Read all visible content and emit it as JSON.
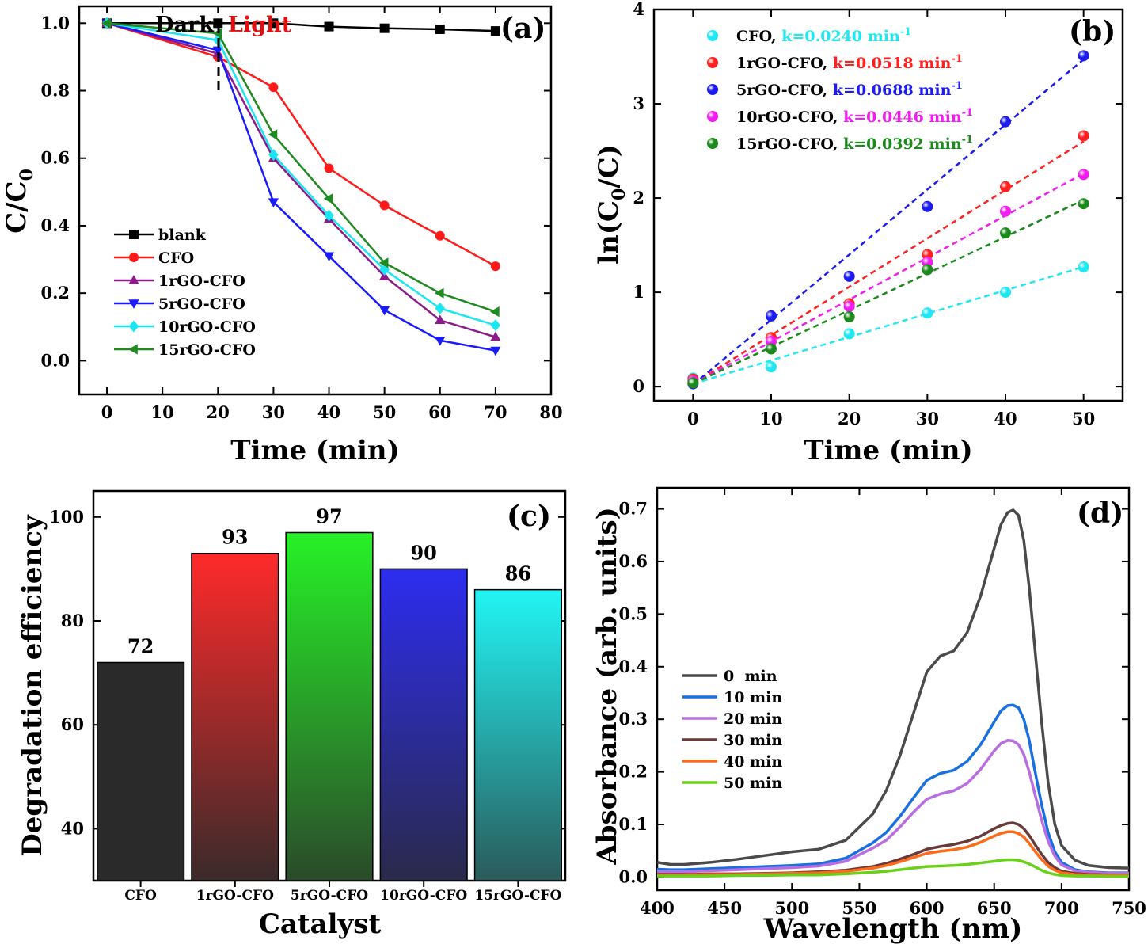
{
  "chart_data": [
    {
      "type": "line",
      "panel": "(a)",
      "xlabel": "Time (min)",
      "ylabel": "C/C",
      "ylabel_sub": "0",
      "xlim": [
        -5,
        80
      ],
      "ylim": [
        -0.1,
        1.05
      ],
      "xticks": [
        0,
        10,
        20,
        30,
        40,
        50,
        60,
        70,
        80
      ],
      "yticks": [
        0.0,
        0.2,
        0.4,
        0.6,
        0.8,
        1.0
      ],
      "ytick_labels": [
        "0.0",
        "0.2",
        "0.4",
        "0.6",
        "0.8",
        "1.0"
      ],
      "annotations": {
        "dark": "Dark",
        "light": "Light",
        "divider_x": 20
      },
      "x": [
        0,
        20,
        30,
        40,
        50,
        60,
        70
      ],
      "series": [
        {
          "name": "blank",
          "color": "#000000",
          "marker": "square",
          "values": [
            1.0,
            1.0,
            1.0,
            0.99,
            0.985,
            0.982,
            0.977
          ]
        },
        {
          "name": "CFO",
          "color": "#ff1a1a",
          "marker": "circle",
          "values": [
            1.0,
            0.9,
            0.81,
            0.57,
            0.46,
            0.37,
            0.28
          ]
        },
        {
          "name": "1rGO-CFO",
          "color": "#8b1a8b",
          "marker": "triangle-up",
          "values": [
            1.0,
            0.91,
            0.6,
            0.42,
            0.25,
            0.12,
            0.07
          ]
        },
        {
          "name": "5rGO-CFO",
          "color": "#1a1aff",
          "marker": "triangle-down",
          "values": [
            1.0,
            0.92,
            0.47,
            0.31,
            0.15,
            0.06,
            0.03
          ]
        },
        {
          "name": "10rGO-CFO",
          "color": "#19e6f0",
          "marker": "diamond",
          "values": [
            1.0,
            0.95,
            0.61,
            0.43,
            0.27,
            0.155,
            0.105
          ]
        },
        {
          "name": "15rGO-CFO",
          "color": "#1f8a1f",
          "marker": "triangle-left",
          "values": [
            1.0,
            0.97,
            0.67,
            0.48,
            0.29,
            0.2,
            0.145
          ]
        }
      ]
    },
    {
      "type": "scatter",
      "panel": "(b)",
      "xlabel": "Time (min)",
      "ylabel": "ln(C",
      "ylabel_sub": "0",
      "ylabel_tail": "/C)",
      "xlim": [
        -5,
        55
      ],
      "ylim": [
        -0.15,
        4
      ],
      "xticks": [
        0,
        10,
        20,
        30,
        40,
        50
      ],
      "yticks": [
        0,
        1,
        2,
        3,
        4
      ],
      "x": [
        0,
        10,
        20,
        30,
        40,
        50
      ],
      "series": [
        {
          "name": "CFO,",
          "k": "k=0.0240 min",
          "k_sup": "-1",
          "color": "#1ee8f2",
          "values": [
            0.09,
            0.21,
            0.56,
            0.78,
            1.0,
            1.27
          ],
          "fit": [
            0.03,
            1.27
          ]
        },
        {
          "name": "1rGO-CFO,",
          "k": "k=0.0518 min",
          "k_sup": "-1",
          "color": "#ff2020",
          "values": [
            0.08,
            0.52,
            0.88,
            1.4,
            2.12,
            2.66
          ],
          "fit": [
            0.03,
            2.6
          ]
        },
        {
          "name": "5rGO-CFO,",
          "k": "k=0.0688 min",
          "k_sup": "-1",
          "color": "#1c1cf0",
          "values": [
            0.03,
            0.75,
            1.17,
            1.91,
            2.81,
            3.51
          ],
          "fit": [
            0.02,
            3.47
          ]
        },
        {
          "name": "10rGO-CFO,",
          "k": "k=0.0446 min",
          "k_sup": "-1",
          "color": "#f01cf0",
          "values": [
            0.06,
            0.48,
            0.85,
            1.32,
            1.86,
            2.25
          ],
          "fit": [
            0.03,
            2.26
          ]
        },
        {
          "name": "15rGO-CFO,",
          "k": "k=0.0392 min",
          "k_sup": "-1",
          "color": "#1a8a1a",
          "values": [
            0.04,
            0.4,
            0.74,
            1.24,
            1.63,
            1.94
          ],
          "fit": [
            0.03,
            1.98
          ]
        }
      ]
    },
    {
      "type": "bar",
      "panel": "(c)",
      "xlabel": "Catalyst",
      "ylabel": "Degradation efficiency",
      "ylim": [
        30,
        105
      ],
      "yticks": [
        40,
        60,
        80,
        100
      ],
      "categories": [
        "CFO",
        "1rGO-CFO",
        "5rGO-CFO",
        "10rGO-CFO",
        "15rGO-CFO"
      ],
      "values": [
        72,
        93,
        97,
        90,
        86
      ],
      "value_labels": [
        "72",
        "93",
        "97",
        "90",
        "86"
      ],
      "colors_top": [
        "#2a2a2a",
        "#ff2a2a",
        "#27f227",
        "#2d2df0",
        "#22f5f5"
      ],
      "colors_bottom": [
        "#2a2a2a",
        "#3a2a2a",
        "#2a4a2a",
        "#2a2a4a",
        "#2a5a5a"
      ]
    },
    {
      "type": "line",
      "panel": "(d)",
      "xlabel": "Wavelength (nm)",
      "ylabel": "Absorbance (arb. units)",
      "xlim": [
        400,
        750
      ],
      "ylim": [
        -0.025,
        0.74
      ],
      "xticks": [
        400,
        450,
        500,
        550,
        600,
        650,
        700,
        750
      ],
      "yticks": [
        0.0,
        0.1,
        0.2,
        0.3,
        0.4,
        0.5,
        0.6,
        0.7
      ],
      "ytick_labels": [
        "0.0",
        "0.1",
        "0.2",
        "0.3",
        "0.4",
        "0.5",
        "0.6",
        "0.7"
      ],
      "x": [
        400,
        410,
        420,
        440,
        460,
        480,
        500,
        520,
        540,
        560,
        570,
        580,
        590,
        600,
        610,
        620,
        630,
        640,
        650,
        655,
        660,
        664,
        668,
        672,
        676,
        680,
        685,
        690,
        695,
        700,
        710,
        720,
        735,
        750
      ],
      "series": [
        {
          "name": "0  min",
          "color": "#4a4a4a",
          "values": [
            0.028,
            0.024,
            0.024,
            0.028,
            0.034,
            0.041,
            0.048,
            0.053,
            0.07,
            0.12,
            0.165,
            0.23,
            0.31,
            0.39,
            0.42,
            0.43,
            0.465,
            0.535,
            0.625,
            0.67,
            0.693,
            0.698,
            0.688,
            0.64,
            0.55,
            0.44,
            0.3,
            0.18,
            0.1,
            0.06,
            0.032,
            0.022,
            0.018,
            0.017
          ]
        },
        {
          "name": "10 min",
          "color": "#1a6fe0",
          "values": [
            0.015,
            0.014,
            0.014,
            0.016,
            0.018,
            0.02,
            0.022,
            0.025,
            0.036,
            0.065,
            0.085,
            0.115,
            0.15,
            0.184,
            0.197,
            0.203,
            0.22,
            0.252,
            0.295,
            0.316,
            0.326,
            0.327,
            0.322,
            0.3,
            0.26,
            0.205,
            0.14,
            0.085,
            0.048,
            0.028,
            0.014,
            0.01,
            0.008,
            0.008
          ]
        },
        {
          "name": "20 min",
          "color": "#b86ee0",
          "values": [
            0.01,
            0.01,
            0.01,
            0.012,
            0.014,
            0.016,
            0.018,
            0.021,
            0.03,
            0.055,
            0.07,
            0.095,
            0.123,
            0.148,
            0.158,
            0.164,
            0.178,
            0.205,
            0.24,
            0.254,
            0.26,
            0.259,
            0.252,
            0.233,
            0.2,
            0.16,
            0.11,
            0.068,
            0.04,
            0.023,
            0.012,
            0.009,
            0.007,
            0.007
          ]
        },
        {
          "name": "30 min",
          "color": "#6a3a3a",
          "values": [
            0.005,
            0.005,
            0.005,
            0.006,
            0.006,
            0.007,
            0.008,
            0.01,
            0.013,
            0.02,
            0.026,
            0.034,
            0.043,
            0.053,
            0.058,
            0.062,
            0.068,
            0.078,
            0.092,
            0.098,
            0.102,
            0.103,
            0.1,
            0.092,
            0.079,
            0.063,
            0.044,
            0.028,
            0.018,
            0.011,
            0.007,
            0.005,
            0.004,
            0.004
          ]
        },
        {
          "name": "40 min",
          "color": "#ff6a1a",
          "values": [
            0.004,
            0.004,
            0.004,
            0.005,
            0.005,
            0.006,
            0.007,
            0.008,
            0.011,
            0.017,
            0.022,
            0.029,
            0.037,
            0.045,
            0.049,
            0.052,
            0.057,
            0.066,
            0.078,
            0.083,
            0.086,
            0.086,
            0.083,
            0.076,
            0.064,
            0.05,
            0.034,
            0.021,
            0.013,
            0.008,
            0.005,
            0.004,
            0.003,
            0.003
          ]
        },
        {
          "name": "50 min",
          "color": "#6ad11a",
          "values": [
            0.002,
            0.002,
            0.002,
            0.002,
            0.003,
            0.003,
            0.004,
            0.004,
            0.006,
            0.009,
            0.011,
            0.014,
            0.017,
            0.02,
            0.021,
            0.022,
            0.024,
            0.027,
            0.03,
            0.032,
            0.033,
            0.033,
            0.032,
            0.029,
            0.025,
            0.02,
            0.013,
            0.008,
            0.005,
            0.003,
            0.002,
            0.002,
            0.001,
            0.001
          ]
        }
      ]
    }
  ]
}
